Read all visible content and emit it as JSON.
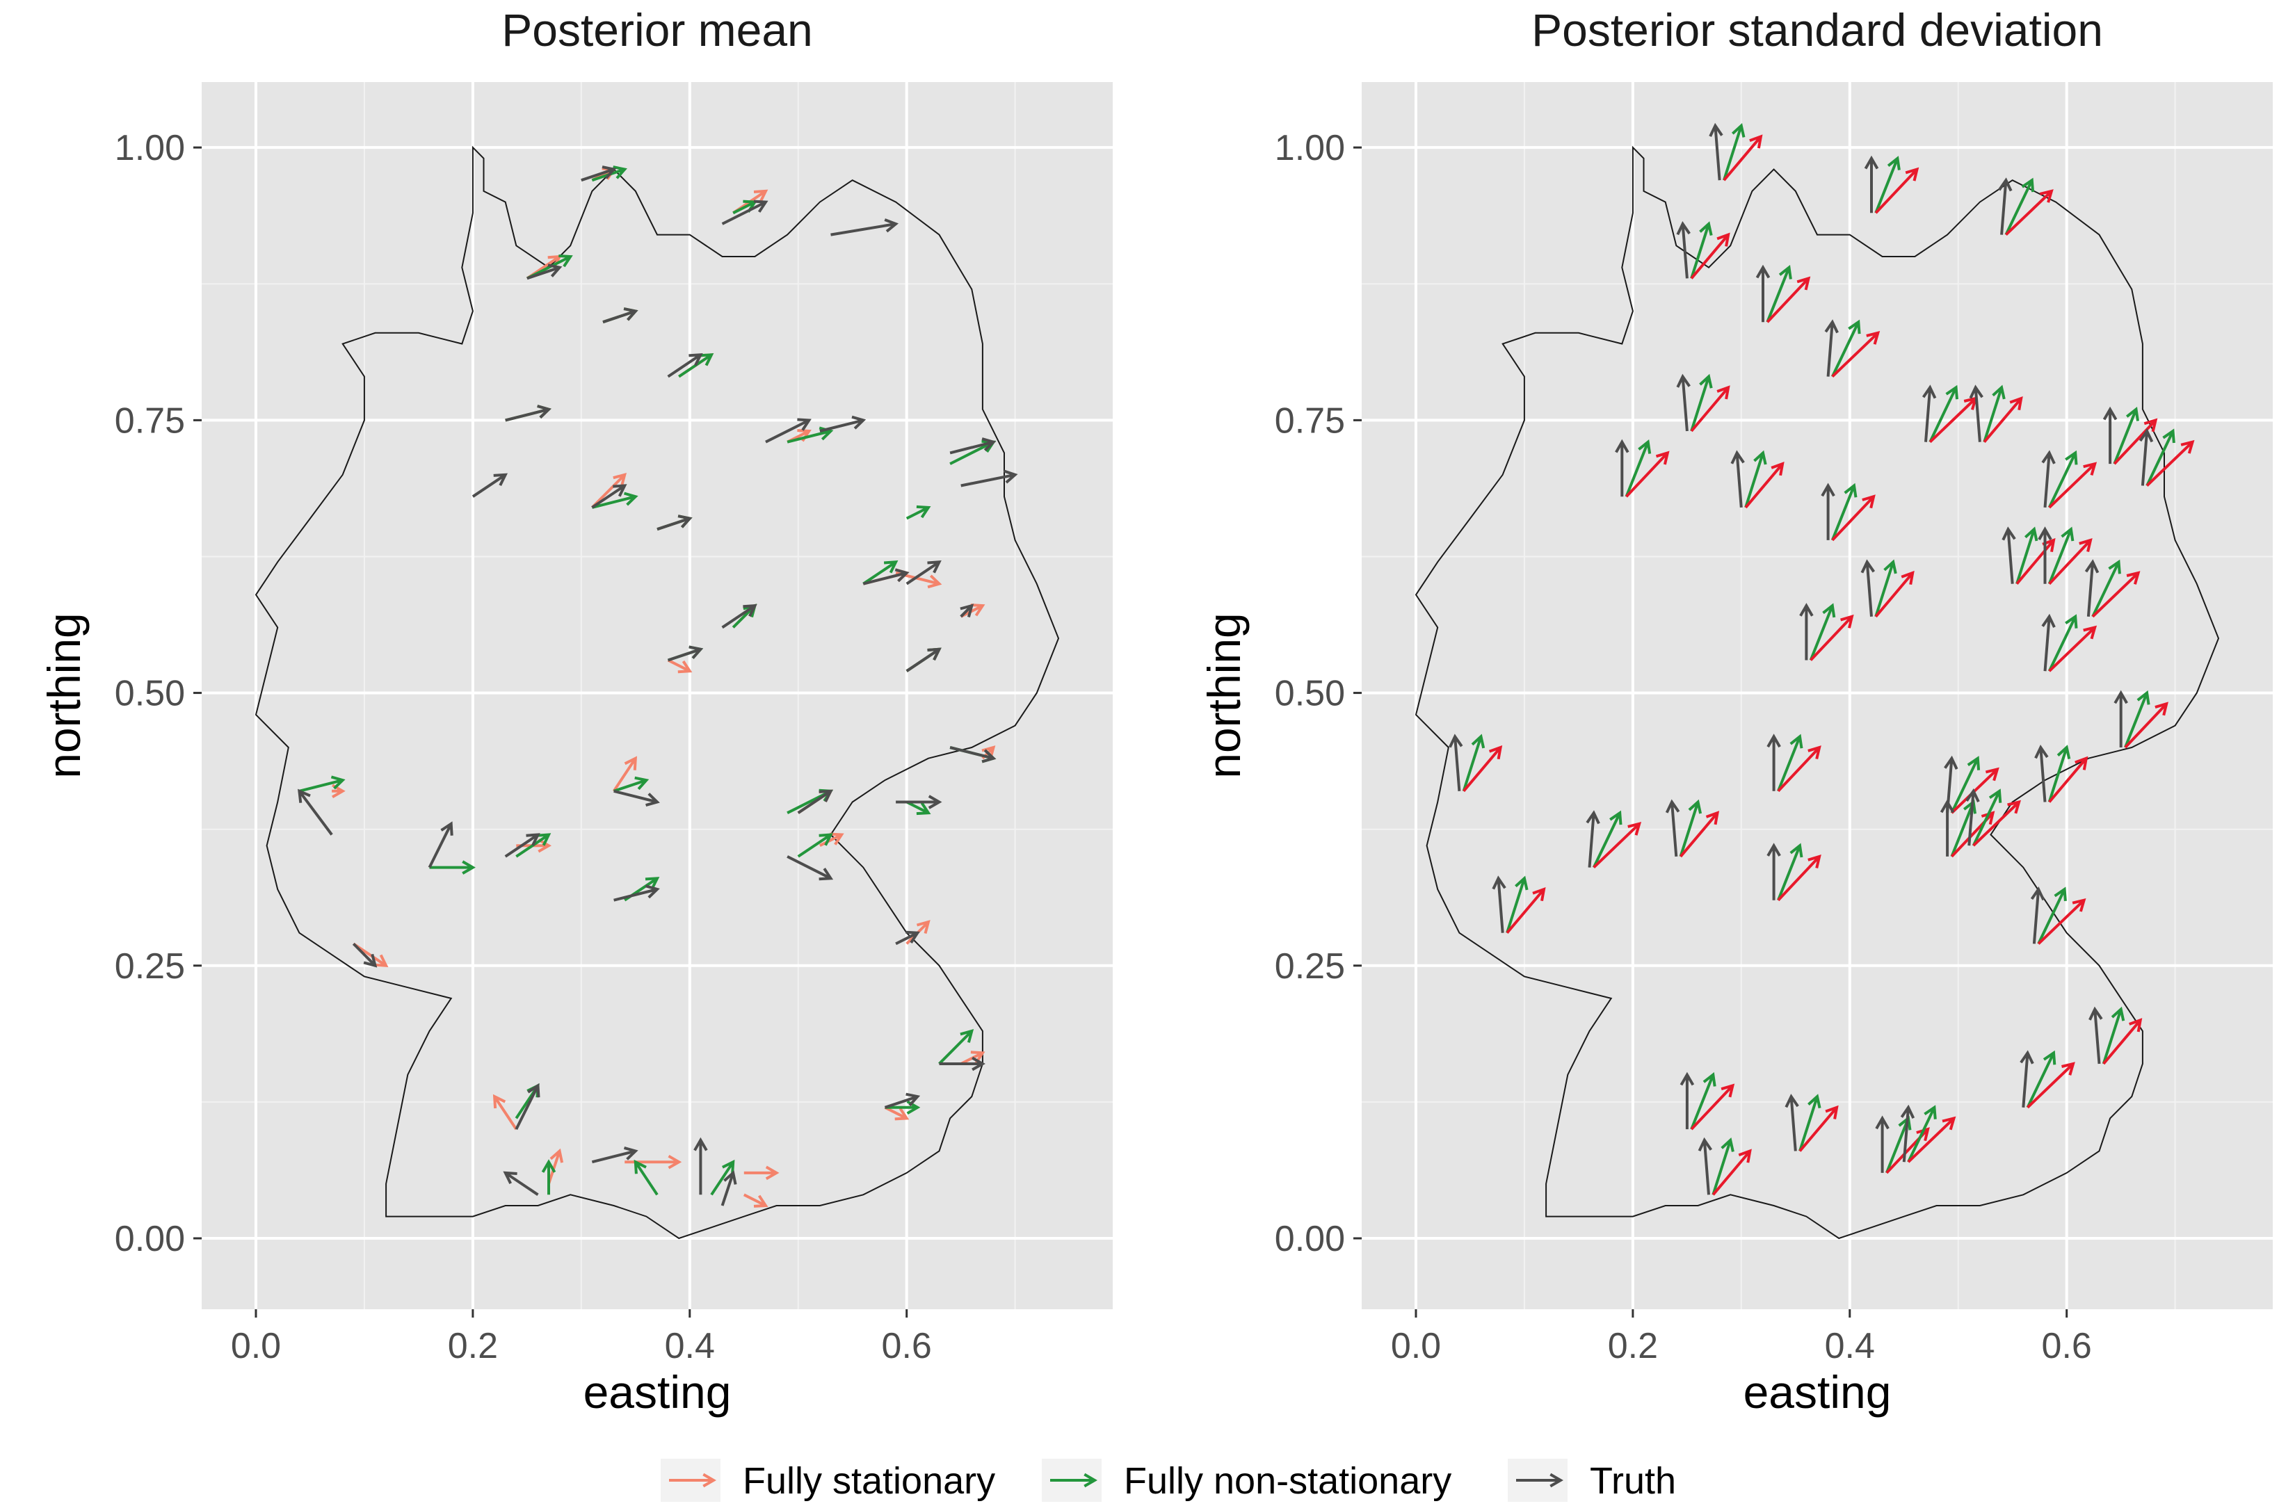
{
  "chart_data": [
    {
      "type": "scatter",
      "subtype": "vector-field-map",
      "title": "Posterior mean",
      "xlabel": "easting",
      "ylabel": "northing",
      "xlim": [
        -0.05,
        0.79
      ],
      "ylim": [
        -0.065,
        1.06
      ],
      "xticks": [
        0.0,
        0.2,
        0.4,
        0.6
      ],
      "xtick_labels": [
        "0.0",
        "0.2",
        "0.4",
        "0.6"
      ],
      "yticks": [
        0.0,
        0.25,
        0.5,
        0.75,
        1.0
      ],
      "ytick_labels": [
        "0.00",
        "0.25",
        "0.50",
        "0.75",
        "1.00"
      ],
      "grid": true,
      "series": [
        {
          "name": "Fully stationary",
          "color": "#f4836b",
          "arrows": [
            [
              0.31,
              0.97,
              0.33,
              0.98
            ],
            [
              0.44,
              0.94,
              0.47,
              0.96
            ],
            [
              0.25,
              0.88,
              0.28,
              0.9
            ],
            [
              0.32,
              0.84,
              0.35,
              0.85
            ],
            [
              0.39,
              0.79,
              0.42,
              0.81
            ],
            [
              0.23,
              0.75,
              0.27,
              0.76
            ],
            [
              0.31,
              0.67,
              0.34,
              0.7
            ],
            [
              0.37,
              0.65,
              0.4,
              0.66
            ],
            [
              0.49,
              0.73,
              0.51,
              0.74
            ],
            [
              0.56,
              0.6,
              0.6,
              0.61
            ],
            [
              0.6,
              0.52,
              0.63,
              0.54
            ],
            [
              0.65,
              0.57,
              0.67,
              0.58
            ],
            [
              0.59,
              0.61,
              0.63,
              0.6
            ],
            [
              0.38,
              0.53,
              0.4,
              0.52
            ],
            [
              0.44,
              0.56,
              0.46,
              0.58
            ],
            [
              0.33,
              0.41,
              0.35,
              0.44
            ],
            [
              0.07,
              0.41,
              0.08,
              0.41
            ],
            [
              0.24,
              0.36,
              0.27,
              0.36
            ],
            [
              0.09,
              0.27,
              0.12,
              0.25
            ],
            [
              0.6,
              0.27,
              0.62,
              0.29
            ],
            [
              0.5,
              0.39,
              0.53,
              0.41
            ],
            [
              0.52,
              0.36,
              0.54,
              0.37
            ],
            [
              0.67,
              0.44,
              0.68,
              0.45
            ],
            [
              0.65,
              0.16,
              0.67,
              0.17
            ],
            [
              0.24,
              0.1,
              0.22,
              0.13
            ],
            [
              0.27,
              0.05,
              0.28,
              0.08
            ],
            [
              0.34,
              0.07,
              0.39,
              0.07
            ],
            [
              0.45,
              0.04,
              0.47,
              0.03
            ],
            [
              0.45,
              0.06,
              0.48,
              0.06
            ],
            [
              0.58,
              0.12,
              0.6,
              0.11
            ]
          ]
        },
        {
          "name": "Fully non-stationary",
          "color": "#23963c",
          "arrows": [
            [
              0.31,
              0.97,
              0.34,
              0.98
            ],
            [
              0.44,
              0.94,
              0.46,
              0.95
            ],
            [
              0.25,
              0.88,
              0.29,
              0.9
            ],
            [
              0.32,
              0.84,
              0.35,
              0.85
            ],
            [
              0.39,
              0.79,
              0.42,
              0.81
            ],
            [
              0.23,
              0.75,
              0.27,
              0.76
            ],
            [
              0.31,
              0.67,
              0.35,
              0.68
            ],
            [
              0.37,
              0.65,
              0.4,
              0.66
            ],
            [
              0.49,
              0.73,
              0.53,
              0.74
            ],
            [
              0.56,
              0.6,
              0.59,
              0.62
            ],
            [
              0.6,
              0.52,
              0.63,
              0.54
            ],
            [
              0.64,
              0.71,
              0.68,
              0.73
            ],
            [
              0.6,
              0.66,
              0.62,
              0.67
            ],
            [
              0.38,
              0.53,
              0.41,
              0.54
            ],
            [
              0.44,
              0.56,
              0.46,
              0.58
            ],
            [
              0.33,
              0.41,
              0.36,
              0.42
            ],
            [
              0.04,
              0.41,
              0.08,
              0.42
            ],
            [
              0.16,
              0.34,
              0.2,
              0.34
            ],
            [
              0.24,
              0.35,
              0.27,
              0.37
            ],
            [
              0.34,
              0.31,
              0.37,
              0.33
            ],
            [
              0.49,
              0.39,
              0.53,
              0.41
            ],
            [
              0.5,
              0.35,
              0.53,
              0.37
            ],
            [
              0.6,
              0.4,
              0.62,
              0.39
            ],
            [
              0.63,
              0.16,
              0.66,
              0.19
            ],
            [
              0.24,
              0.11,
              0.26,
              0.14
            ],
            [
              0.27,
              0.04,
              0.27,
              0.07
            ],
            [
              0.37,
              0.04,
              0.35,
              0.07
            ],
            [
              0.42,
              0.04,
              0.44,
              0.07
            ],
            [
              0.58,
              0.12,
              0.61,
              0.12
            ],
            [
              0.64,
              0.45,
              0.68,
              0.44
            ]
          ]
        },
        {
          "name": "Truth",
          "color": "#4d4d4d",
          "arrows": [
            [
              0.3,
              0.97,
              0.33,
              0.98
            ],
            [
              0.43,
              0.93,
              0.47,
              0.95
            ],
            [
              0.25,
              0.88,
              0.28,
              0.89
            ],
            [
              0.32,
              0.84,
              0.35,
              0.85
            ],
            [
              0.38,
              0.79,
              0.41,
              0.81
            ],
            [
              0.23,
              0.75,
              0.27,
              0.76
            ],
            [
              0.2,
              0.68,
              0.23,
              0.7
            ],
            [
              0.31,
              0.67,
              0.34,
              0.69
            ],
            [
              0.37,
              0.65,
              0.4,
              0.66
            ],
            [
              0.47,
              0.73,
              0.51,
              0.75
            ],
            [
              0.52,
              0.74,
              0.56,
              0.75
            ],
            [
              0.53,
              0.92,
              0.59,
              0.93
            ],
            [
              0.65,
              0.69,
              0.7,
              0.7
            ],
            [
              0.64,
              0.72,
              0.68,
              0.73
            ],
            [
              0.56,
              0.6,
              0.6,
              0.61
            ],
            [
              0.6,
              0.6,
              0.63,
              0.62
            ],
            [
              0.6,
              0.52,
              0.63,
              0.54
            ],
            [
              0.65,
              0.57,
              0.66,
              0.58
            ],
            [
              0.38,
              0.53,
              0.41,
              0.54
            ],
            [
              0.43,
              0.56,
              0.46,
              0.58
            ],
            [
              0.33,
              0.41,
              0.37,
              0.4
            ],
            [
              0.07,
              0.37,
              0.04,
              0.41
            ],
            [
              0.16,
              0.34,
              0.18,
              0.38
            ],
            [
              0.23,
              0.35,
              0.26,
              0.37
            ],
            [
              0.33,
              0.31,
              0.37,
              0.32
            ],
            [
              0.49,
              0.35,
              0.53,
              0.33
            ],
            [
              0.5,
              0.39,
              0.53,
              0.41
            ],
            [
              0.59,
              0.4,
              0.63,
              0.4
            ],
            [
              0.09,
              0.27,
              0.11,
              0.25
            ],
            [
              0.59,
              0.27,
              0.61,
              0.28
            ],
            [
              0.64,
              0.45,
              0.68,
              0.44
            ],
            [
              0.63,
              0.16,
              0.67,
              0.16
            ],
            [
              0.24,
              0.1,
              0.26,
              0.14
            ],
            [
              0.26,
              0.04,
              0.23,
              0.06
            ],
            [
              0.31,
              0.07,
              0.35,
              0.08
            ],
            [
              0.41,
              0.04,
              0.41,
              0.09
            ],
            [
              0.43,
              0.03,
              0.44,
              0.06
            ],
            [
              0.58,
              0.12,
              0.61,
              0.13
            ]
          ]
        }
      ]
    },
    {
      "type": "scatter",
      "subtype": "vector-field-map",
      "title": "Posterior standard deviation",
      "xlabel": "easting",
      "ylabel": "northing",
      "xlim": [
        -0.05,
        0.79
      ],
      "ylim": [
        -0.065,
        1.06
      ],
      "xticks": [
        0.0,
        0.2,
        0.4,
        0.6
      ],
      "xtick_labels": [
        "0.0",
        "0.2",
        "0.4",
        "0.6"
      ],
      "yticks": [
        0.0,
        0.25,
        0.5,
        0.75,
        1.0
      ],
      "ytick_labels": [
        "0.00",
        "0.25",
        "0.50",
        "0.75",
        "1.00"
      ],
      "grid": true,
      "sites": [
        [
          0.28,
          0.97
        ],
        [
          0.42,
          0.94
        ],
        [
          0.54,
          0.92
        ],
        [
          0.25,
          0.88
        ],
        [
          0.32,
          0.84
        ],
        [
          0.38,
          0.79
        ],
        [
          0.25,
          0.74
        ],
        [
          0.19,
          0.68
        ],
        [
          0.47,
          0.73
        ],
        [
          0.52,
          0.73
        ],
        [
          0.64,
          0.71
        ],
        [
          0.67,
          0.69
        ],
        [
          0.3,
          0.67
        ],
        [
          0.38,
          0.64
        ],
        [
          0.58,
          0.67
        ],
        [
          0.55,
          0.6
        ],
        [
          0.58,
          0.6
        ],
        [
          0.62,
          0.57
        ],
        [
          0.42,
          0.57
        ],
        [
          0.36,
          0.53
        ],
        [
          0.58,
          0.52
        ],
        [
          0.04,
          0.41
        ],
        [
          0.33,
          0.41
        ],
        [
          0.49,
          0.39
        ],
        [
          0.58,
          0.4
        ],
        [
          0.65,
          0.45
        ],
        [
          0.16,
          0.34
        ],
        [
          0.24,
          0.35
        ],
        [
          0.49,
          0.35
        ],
        [
          0.51,
          0.36
        ],
        [
          0.08,
          0.28
        ],
        [
          0.33,
          0.31
        ],
        [
          0.57,
          0.27
        ],
        [
          0.63,
          0.16
        ],
        [
          0.25,
          0.1
        ],
        [
          0.56,
          0.12
        ],
        [
          0.35,
          0.08
        ],
        [
          0.43,
          0.06
        ],
        [
          0.45,
          0.07
        ],
        [
          0.27,
          0.04
        ]
      ],
      "arrow_dx": {
        "Truth": 0.0,
        "Fully non-stationary": 0.02,
        "Fully stationary": 0.038
      },
      "arrow_dy": {
        "Truth": 0.05,
        "Fully non-stationary": 0.05,
        "Fully stationary": 0.04
      },
      "series": [
        {
          "name": "Fully stationary",
          "color": "#e8192b"
        },
        {
          "name": "Fully non-stationary",
          "color": "#23963c"
        },
        {
          "name": "Truth",
          "color": "#4d4d4d"
        }
      ]
    }
  ],
  "legend": {
    "position": "bottom",
    "items": [
      {
        "label": "Fully stationary",
        "color": "#f4836b"
      },
      {
        "label": "Fully non-stationary",
        "color": "#23963c"
      },
      {
        "label": "Truth",
        "color": "#4d4d4d"
      }
    ]
  }
}
